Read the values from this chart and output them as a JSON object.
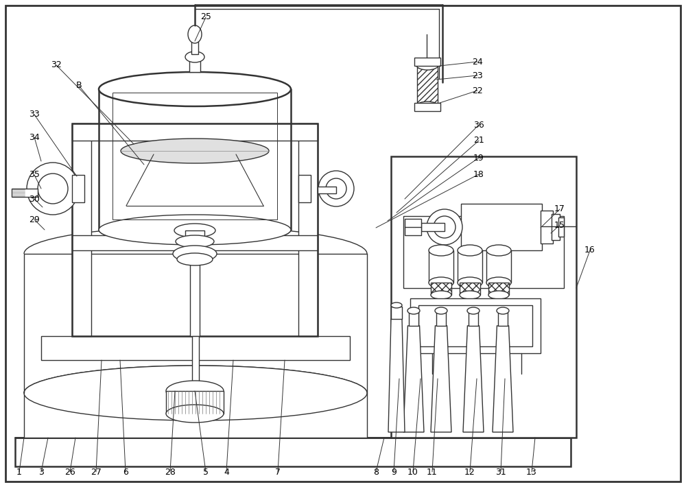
{
  "bg_color": "#ffffff",
  "line_color": "#333333",
  "lw": 1.0,
  "lw_thick": 1.8,
  "fig_width": 10.0,
  "fig_height": 7.1,
  "label_fs": 9
}
